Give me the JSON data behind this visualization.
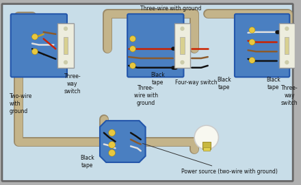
{
  "colors": {
    "bg_color": "#c8dde8",
    "bg_outer": "#b0b0b0",
    "box_fill": "#4a7fc1",
    "box_stroke": "#2255aa",
    "wire_black": "#111111",
    "wire_white": "#e0e0e0",
    "wire_red": "#cc2200",
    "wire_brown": "#8b5a2b",
    "wire_bare": "#c8a020",
    "conduit": "#b8a888",
    "connector_yellow": "#e8c840",
    "label_color": "#111111"
  },
  "labels": {
    "power_source": "Power source (two-wire with ground)",
    "two_wire": "Two-wire\nwith\nground",
    "three_way_left": "Three-\nway\nswitch",
    "three_wire_ground": "Three-\nwire with\nground",
    "four_way": "Four-way switch",
    "three_way_right": "Three-\nway\nswitch",
    "black_tape1": "Black\ntape",
    "black_tape2": "Black\ntape",
    "black_tape3": "Black\ntape",
    "black_tape4": "Black\ntape",
    "three_wire_bottom": "Three-wire with ground"
  }
}
